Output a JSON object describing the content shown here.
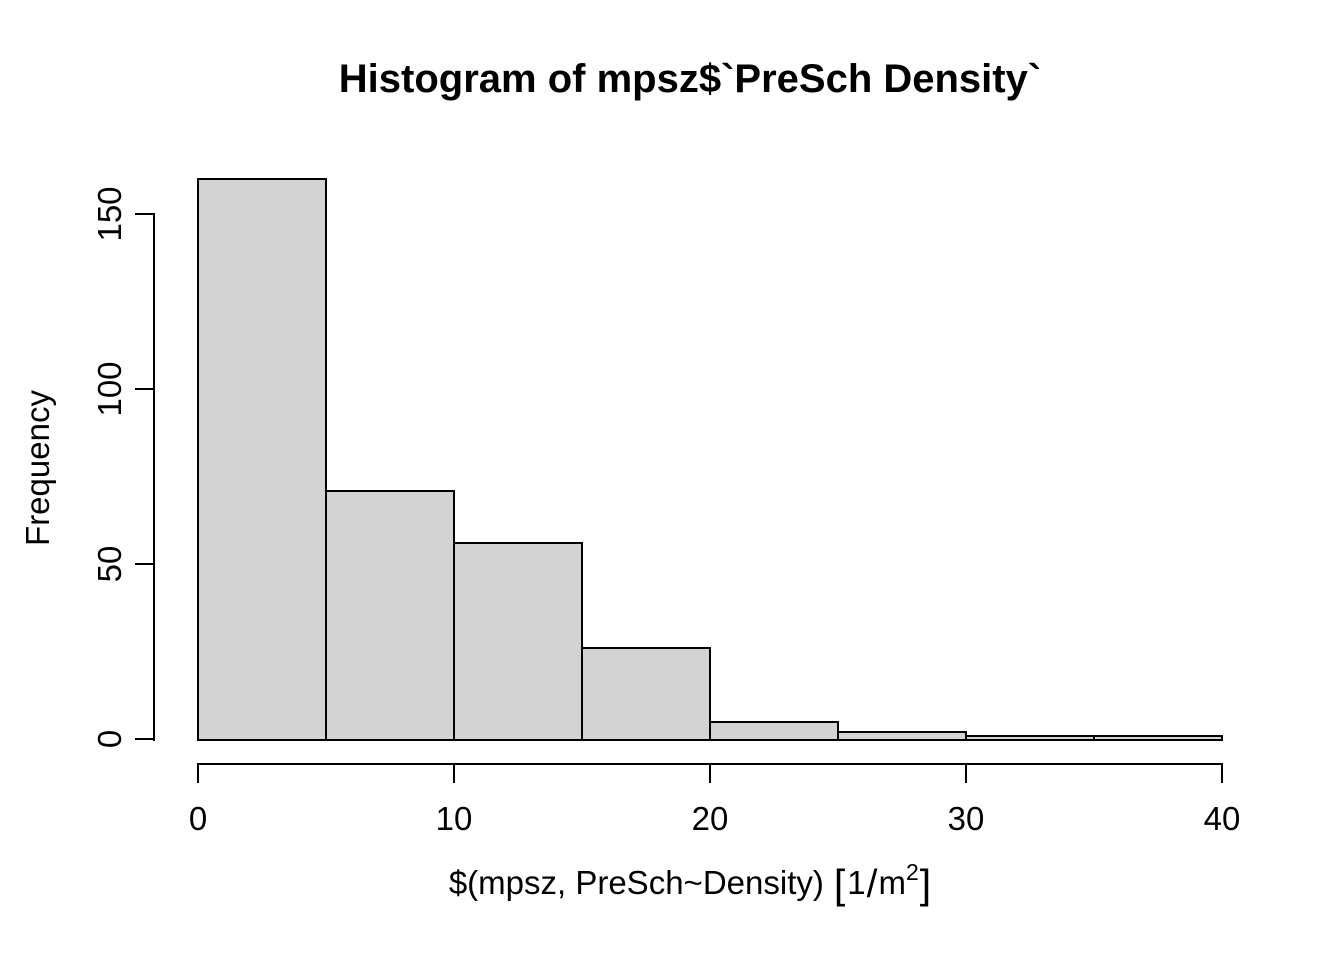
{
  "chart_data": {
    "type": "bar",
    "subtype": "histogram",
    "title": "Histogram of mpsz$`PreSch Density`",
    "xlabel": "$(mpsz, PreSch~Density) [1/m²]",
    "xlabel_parts": {
      "prefix": "$(mpsz, PreSch~Density)",
      "open_bracket": "[",
      "numerator": "1",
      "slash": "/",
      "unit": "m",
      "exponent": "2",
      "close_bracket": "]"
    },
    "ylabel": "Frequency",
    "bin_width": 5,
    "bin_edges": [
      0,
      5,
      10,
      15,
      20,
      25,
      30,
      35,
      40
    ],
    "categories": [
      "0-5",
      "5-10",
      "10-15",
      "15-20",
      "20-25",
      "25-30",
      "30-35",
      "35-40"
    ],
    "counts": [
      160,
      71,
      56,
      26,
      5,
      2,
      1,
      1
    ],
    "x_ticks": [
      0,
      10,
      20,
      30,
      40
    ],
    "y_ticks": [
      0,
      50,
      100,
      150
    ],
    "xlim": [
      0,
      40
    ],
    "ylim": [
      0,
      160
    ],
    "grid": false,
    "legend": null,
    "bar_fill": "#d3d3d3",
    "bar_border": "#000000",
    "axis_color": "#000000",
    "text_color": "#000000",
    "background": "#ffffff"
  }
}
